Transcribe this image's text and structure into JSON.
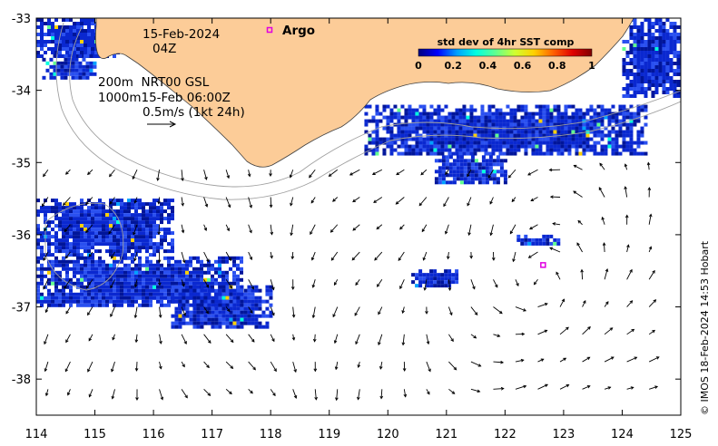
{
  "chart_data": {
    "type": "map",
    "title": "",
    "xlabel": "",
    "ylabel": "",
    "xlim": [
      114,
      125
    ],
    "ylim": [
      -38.5,
      -33
    ],
    "x_ticks": [
      114,
      115,
      116,
      117,
      118,
      119,
      120,
      121,
      122,
      123,
      124,
      125
    ],
    "y_ticks": [
      -33,
      -34,
      -35,
      -36,
      -37,
      -38
    ],
    "x_tick_labels": [
      "114",
      "115",
      "116",
      "117",
      "118",
      "119",
      "120",
      "121",
      "122",
      "123",
      "124",
      "125"
    ],
    "y_tick_labels": [
      "-33",
      "-34",
      "-35",
      "-36",
      "-37",
      "-38"
    ],
    "date_line1": "15-Feb-2024",
    "date_line2": "04Z",
    "contour_legend_line1": "200m  NRT00 GSL",
    "contour_legend_line2": "1000m15-Feb 06:00Z",
    "velocity_scale_label": "0.5m/s (1kt 24h)",
    "argo_label": "Argo",
    "argo_float": {
      "lon": 122.65,
      "lat": -36.42
    },
    "colorbar": {
      "title": "std dev of 4hr SST comp",
      "min": 0,
      "max": 1,
      "tick_values": [
        0,
        0.2,
        0.4,
        0.6,
        0.8,
        1
      ],
      "tick_labels": [
        "0",
        "0.2",
        "0.4",
        "0.6",
        "0.8",
        "1"
      ],
      "colors": [
        "#00007f",
        "#0000ff",
        "#00a0ff",
        "#00ffe0",
        "#60ff90",
        "#d0ff30",
        "#ffd000",
        "#ff6000",
        "#e00000",
        "#7f0000"
      ]
    },
    "land_color": "#fccc98",
    "sst_patch_regions": [
      {
        "lon": [
          114.0,
          115.4
        ],
        "lat": [
          -33.55,
          -33.0
        ]
      },
      {
        "lon": [
          114.1,
          115.0
        ],
        "lat": [
          -33.85,
          -33.5
        ]
      },
      {
        "lon": [
          114.0,
          116.3
        ],
        "lat": [
          -36.3,
          -35.5
        ]
      },
      {
        "lon": [
          114.0,
          117.5
        ],
        "lat": [
          -37.0,
          -36.3
        ]
      },
      {
        "lon": [
          116.3,
          118.0
        ],
        "lat": [
          -37.3,
          -36.7
        ]
      },
      {
        "lon": [
          119.6,
          124.4
        ],
        "lat": [
          -34.9,
          -34.2
        ]
      },
      {
        "lon": [
          120.8,
          122.0
        ],
        "lat": [
          -35.3,
          -34.9
        ]
      },
      {
        "lon": [
          124.0,
          125.0
        ],
        "lat": [
          -34.1,
          -33.0
        ]
      },
      {
        "lon": [
          122.2,
          122.9
        ],
        "lat": [
          -36.15,
          -36.0
        ]
      },
      {
        "lon": [
          120.4,
          121.2
        ],
        "lat": [
          -36.72,
          -36.48
        ]
      }
    ]
  },
  "credit": "© IMOS 18-Feb-2024 14:53 Hobart"
}
